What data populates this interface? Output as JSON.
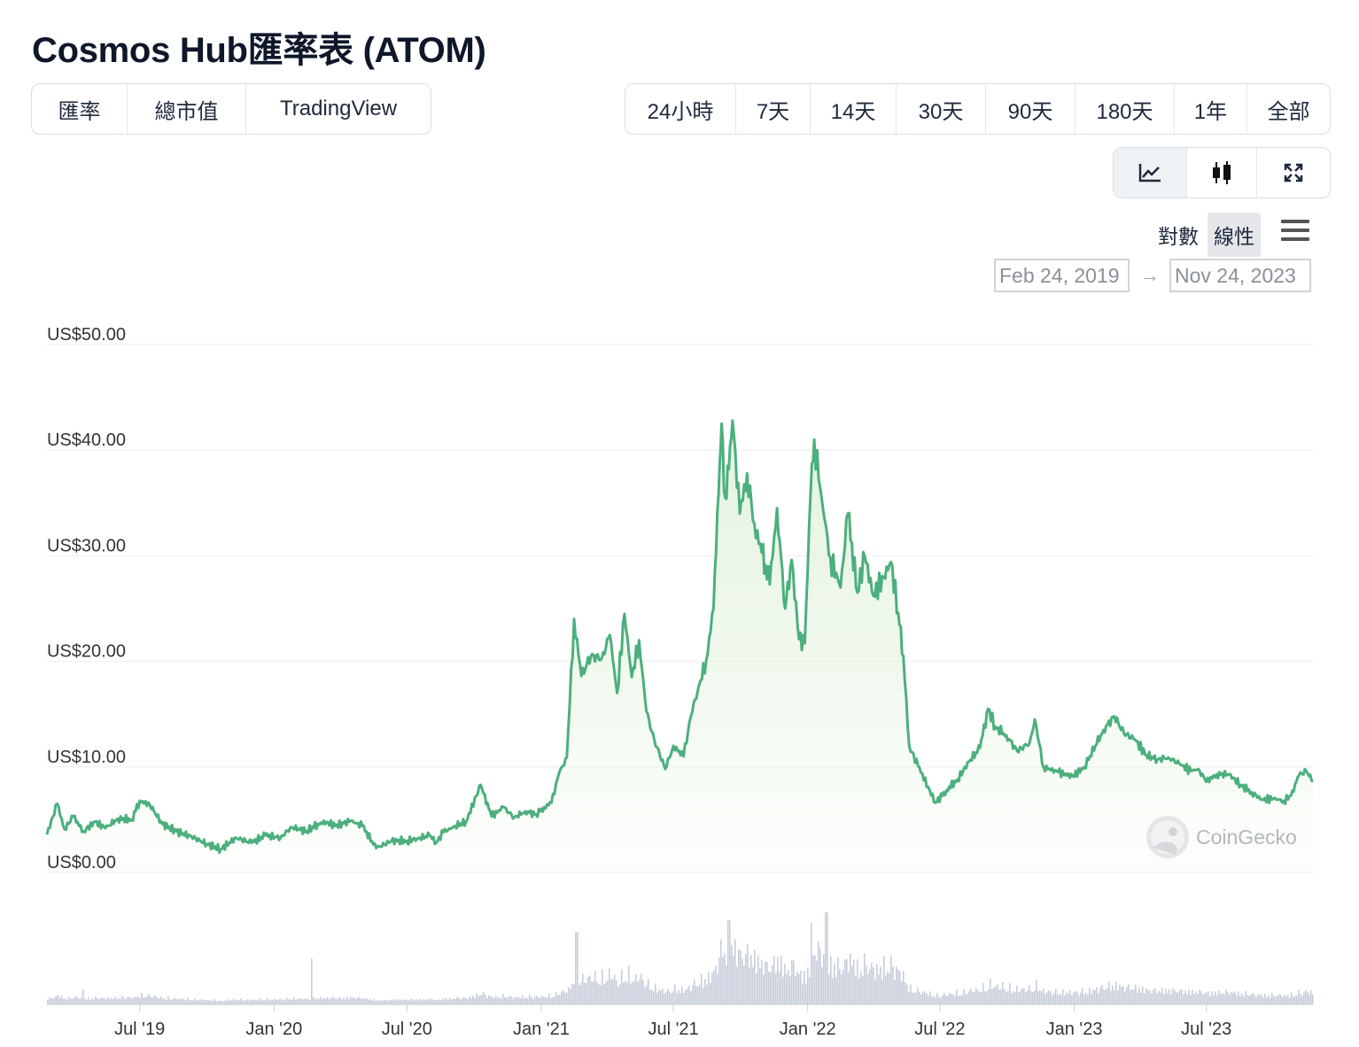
{
  "page": {
    "title": "Cosmos Hub匯率表 (ATOM)"
  },
  "view_tabs": [
    "匯率",
    "總市值",
    "TradingView"
  ],
  "view_tabs_active": 0,
  "range_tabs": [
    "24小時",
    "7天",
    "14天",
    "30天",
    "90天",
    "180天",
    "1年",
    "全部"
  ],
  "range_tabs_active": 7,
  "chart_type_buttons": [
    {
      "icon": "line-chart-icon",
      "active": true
    },
    {
      "icon": "candlestick-icon",
      "active": false
    },
    {
      "icon": "expand-icon",
      "active": false
    }
  ],
  "scale": {
    "log_label": "對數",
    "linear_label": "線性",
    "active": "linear"
  },
  "date_range": {
    "from": "Feb 24, 2019",
    "arrow": "→",
    "to": "Nov 24, 2023"
  },
  "watermark": "CoinGecko",
  "colors": {
    "line": "#4caf7d",
    "area_top": "#e2f2dd",
    "volume": "#c7ceda",
    "grid": "#eeeeee"
  },
  "chart_data": {
    "type": "line",
    "title": "",
    "y_ticks": [
      "US$50.00",
      "US$40.00",
      "US$30.00",
      "US$20.00",
      "US$10.00",
      "US$0.00"
    ],
    "ylim": [
      0,
      50
    ],
    "x_ticks": [
      {
        "label": "Jul '19",
        "date": "2019-07-01"
      },
      {
        "label": "Jan '20",
        "date": "2020-01-01"
      },
      {
        "label": "Jul '20",
        "date": "2020-07-01"
      },
      {
        "label": "Jan '21",
        "date": "2021-01-01"
      },
      {
        "label": "Jul '21",
        "date": "2021-07-01"
      },
      {
        "label": "Jan '22",
        "date": "2022-01-01"
      },
      {
        "label": "Jul '22",
        "date": "2022-07-01"
      },
      {
        "label": "Jan '23",
        "date": "2023-01-01"
      },
      {
        "label": "Jul '23",
        "date": "2023-07-01"
      }
    ],
    "xlim": [
      "2019-02-24",
      "2023-11-24"
    ],
    "grid": true,
    "series": [
      {
        "dates": [
          "2019-02-24",
          "2019-03-10",
          "2019-03-20",
          "2019-04-01",
          "2019-04-15",
          "2019-05-01",
          "2019-05-15",
          "2019-06-01",
          "2019-06-20",
          "2019-07-01",
          "2019-07-15",
          "2019-08-01",
          "2019-08-20",
          "2019-09-10",
          "2019-10-01",
          "2019-10-20",
          "2019-11-10",
          "2019-12-01",
          "2019-12-20",
          "2020-01-10",
          "2020-01-25",
          "2020-02-15",
          "2020-03-01",
          "2020-03-13",
          "2020-03-25",
          "2020-04-15",
          "2020-05-01",
          "2020-05-20",
          "2020-06-10",
          "2020-07-01",
          "2020-07-15",
          "2020-08-01",
          "2020-08-10",
          "2020-08-20",
          "2020-09-05",
          "2020-09-20",
          "2020-10-10",
          "2020-10-25",
          "2020-11-10",
          "2020-11-25",
          "2020-12-10",
          "2020-12-25",
          "2021-01-05",
          "2021-01-15",
          "2021-01-25",
          "2021-02-05",
          "2021-02-15",
          "2021-02-25",
          "2021-03-10",
          "2021-03-25",
          "2021-04-05",
          "2021-04-15",
          "2021-04-25",
          "2021-05-05",
          "2021-05-15",
          "2021-05-25",
          "2021-06-05",
          "2021-06-20",
          "2021-07-01",
          "2021-07-15",
          "2021-07-25",
          "2021-08-05",
          "2021-08-15",
          "2021-08-25",
          "2021-09-01",
          "2021-09-05",
          "2021-09-10",
          "2021-09-15",
          "2021-09-20",
          "2021-09-30",
          "2021-10-10",
          "2021-10-20",
          "2021-10-30",
          "2021-11-10",
          "2021-11-20",
          "2021-12-01",
          "2021-12-10",
          "2021-12-20",
          "2021-12-28",
          "2022-01-05",
          "2022-01-10",
          "2022-01-20",
          "2022-02-01",
          "2022-02-15",
          "2022-02-25",
          "2022-03-10",
          "2022-03-20",
          "2022-04-01",
          "2022-04-15",
          "2022-04-25",
          "2022-05-05",
          "2022-05-12",
          "2022-05-20",
          "2022-06-01",
          "2022-06-15",
          "2022-06-25",
          "2022-07-10",
          "2022-07-25",
          "2022-08-10",
          "2022-08-25",
          "2022-09-05",
          "2022-09-15",
          "2022-09-30",
          "2022-10-15",
          "2022-11-01",
          "2022-11-08",
          "2022-11-20",
          "2022-12-10",
          "2022-12-30",
          "2023-01-15",
          "2023-01-30",
          "2023-02-10",
          "2023-02-25",
          "2023-03-10",
          "2023-03-25",
          "2023-04-10",
          "2023-04-25",
          "2023-05-10",
          "2023-05-25",
          "2023-06-10",
          "2023-06-20",
          "2023-07-01",
          "2023-07-15",
          "2023-08-01",
          "2023-08-17",
          "2023-09-01",
          "2023-09-15",
          "2023-10-01",
          "2023-10-15",
          "2023-10-25",
          "2023-11-05",
          "2023-11-15",
          "2023-11-24"
        ],
        "values": [
          3.6,
          6.5,
          4.1,
          5.3,
          3.9,
          4.8,
          4.2,
          5.1,
          5.0,
          6.8,
          6.4,
          4.6,
          3.9,
          3.4,
          2.7,
          2.2,
          3.3,
          2.8,
          3.5,
          3.3,
          4.3,
          3.9,
          4.6,
          4.8,
          4.4,
          4.9,
          4.4,
          2.3,
          3.0,
          3.0,
          3.2,
          3.5,
          2.8,
          3.8,
          4.4,
          4.8,
          8.3,
          5.3,
          6.2,
          5.2,
          5.8,
          5.5,
          6.2,
          6.6,
          9.3,
          10.9,
          24.0,
          18.6,
          20.5,
          20.3,
          22.5,
          17.0,
          24.5,
          18.5,
          22.0,
          15.3,
          12.5,
          9.8,
          12.0,
          11.0,
          14.8,
          17.7,
          20.1,
          25.0,
          36.0,
          42.5,
          35.5,
          38.2,
          42.8,
          34.0,
          37.8,
          33.0,
          30.3,
          27.3,
          34.5,
          25.0,
          29.6,
          22.1,
          21.7,
          36.0,
          41.0,
          35.5,
          29.8,
          27.0,
          34.0,
          26.5,
          30.0,
          26.2,
          28.0,
          29.4,
          24.6,
          20.5,
          12.0,
          10.1,
          8.1,
          6.6,
          7.8,
          8.8,
          10.5,
          11.8,
          15.5,
          13.8,
          13.0,
          11.5,
          12.3,
          14.5,
          10.0,
          9.5,
          9.1,
          10.0,
          12.0,
          13.5,
          14.8,
          13.2,
          12.6,
          11.1,
          10.7,
          10.9,
          10.3,
          9.6,
          9.8,
          8.6,
          9.3,
          9.3,
          8.3,
          7.6,
          6.9,
          7.0,
          6.8,
          7.3,
          9.2,
          9.6,
          8.6
        ]
      }
    ],
    "volume_note": "volume bars (no volume axis printed)"
  }
}
